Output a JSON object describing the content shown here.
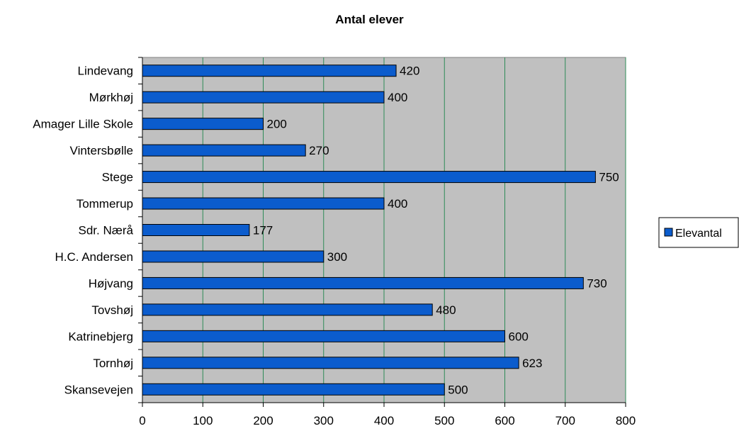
{
  "chart_data": {
    "type": "bar",
    "orientation": "horizontal",
    "title": "Antal elever",
    "xlabel": "",
    "ylabel": "",
    "categories": [
      "Lindevang",
      "Mørkhøj",
      "Amager Lille Skole",
      "Vintersbølle",
      "Stege",
      "Tommerup",
      "Sdr. Nærå",
      "H.C. Andersen",
      "Højvang",
      "Tovshøj",
      "Katrinebjerg",
      "Tornhøj",
      "Skansevejen"
    ],
    "series": [
      {
        "name": "Elevantal",
        "values": [
          420,
          400,
          200,
          270,
          750,
          400,
          177,
          300,
          730,
          480,
          600,
          623,
          500
        ],
        "color": "#0b5ccd"
      }
    ],
    "xlim": [
      0,
      800
    ],
    "xticks": [
      0,
      100,
      200,
      300,
      400,
      500,
      600,
      700,
      800
    ],
    "grid": true,
    "legend": "right",
    "plot_background": "#c0c0c0",
    "gridline_color": "#2e8b57"
  }
}
